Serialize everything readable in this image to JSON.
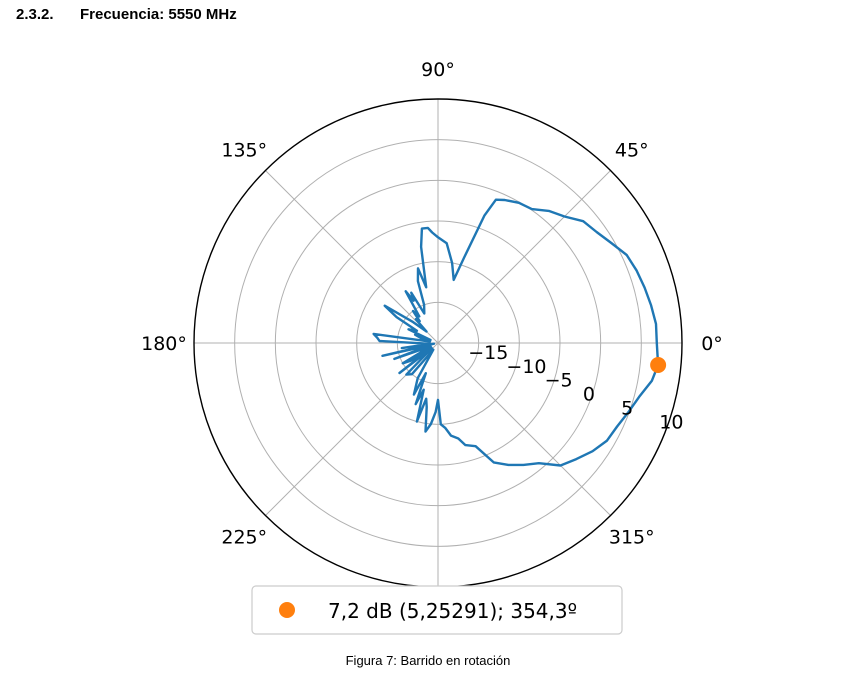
{
  "section": {
    "number": "2.3.2.",
    "title": "Frecuencia: 5550 MHz"
  },
  "caption": "Figura 7: Barrido en rotación",
  "chart_data": {
    "type": "polar-line",
    "title": "",
    "theta_unit": "degrees",
    "r_unit": "dB",
    "rlim": [
      -20,
      10
    ],
    "r_ticks": [
      -15,
      -10,
      -5,
      0,
      5,
      10
    ],
    "r_tick_labels": [
      "−15",
      "−10",
      "−5",
      "0",
      "5",
      "10"
    ],
    "theta_ticks": [
      0,
      45,
      90,
      135,
      180,
      225,
      270,
      315
    ],
    "theta_tick_labels": [
      "0°",
      "45°",
      "90°",
      "135°",
      "180°",
      "225°",
      "",
      "315°"
    ],
    "grid": true,
    "series": [
      {
        "color": "#1f77b4",
        "points": [
          [
            0,
            6.9
          ],
          [
            5,
            6.9
          ],
          [
            10,
            6.6
          ],
          [
            15,
            6.3
          ],
          [
            20,
            6.0
          ],
          [
            25,
            5.6
          ],
          [
            30,
            4.6
          ],
          [
            35,
            3.8
          ],
          [
            40,
            3.3
          ],
          [
            45,
            2.0
          ],
          [
            50,
            1.2
          ],
          [
            55,
            0.1
          ],
          [
            60,
            -0.1
          ],
          [
            65,
            -0.6
          ],
          [
            68,
            -1.0
          ],
          [
            70,
            -3.3
          ],
          [
            73,
            -9.0
          ],
          [
            76,
            -12.0
          ],
          [
            80,
            -10.0
          ],
          [
            85,
            -7.7
          ],
          [
            90,
            -7.0
          ],
          [
            93,
            -6.4
          ],
          [
            95,
            -5.8
          ],
          [
            98,
            -5.8
          ],
          [
            100,
            -8.0
          ],
          [
            102,
            -13.0
          ],
          [
            105,
            -10.5
          ],
          [
            108,
            -12.0
          ],
          [
            110,
            -15.0
          ],
          [
            115,
            -16.0
          ],
          [
            118,
            -13.0
          ],
          [
            120,
            -14.0
          ],
          [
            122,
            -12.5
          ],
          [
            125,
            -16.0
          ],
          [
            128,
            -15.0
          ],
          [
            130,
            -16.5
          ],
          [
            133,
            -16.0
          ],
          [
            135,
            -18.0
          ],
          [
            140,
            -16.0
          ],
          [
            145,
            -12.0
          ],
          [
            148,
            -14.0
          ],
          [
            150,
            -17.0
          ],
          [
            155,
            -16.0
          ],
          [
            158,
            -19.0
          ],
          [
            160,
            -17.0
          ],
          [
            165,
            -18.0
          ],
          [
            170,
            -19.0
          ],
          [
            172,
            -12.0
          ],
          [
            175,
            -12.5
          ],
          [
            178,
            -12.8
          ],
          [
            181,
            -18.0
          ],
          [
            186,
            -19.0
          ],
          [
            188,
            -15.5
          ],
          [
            190,
            -19.5
          ],
          [
            193,
            -13.0
          ],
          [
            196,
            -19.0
          ],
          [
            200,
            -14.3
          ],
          [
            205,
            -19.0
          ],
          [
            210,
            -15.0
          ],
          [
            213,
            -16.0
          ],
          [
            215,
            -19.0
          ],
          [
            218,
            -14.0
          ],
          [
            220,
            -19.0
          ],
          [
            225,
            -14.5
          ],
          [
            230,
            -15.0
          ],
          [
            235,
            -19.0
          ],
          [
            240,
            -15.0
          ],
          [
            245,
            -13.0
          ],
          [
            248,
            -16.0
          ],
          [
            250,
            -12.0
          ],
          [
            253,
            -14.0
          ],
          [
            255,
            -10.0
          ],
          [
            258,
            -13.0
          ],
          [
            260,
            -12.0
          ],
          [
            262,
            -9.0
          ],
          [
            265,
            -10.0
          ],
          [
            268,
            -11.5
          ],
          [
            270,
            -13.0
          ],
          [
            272,
            -10.0
          ],
          [
            275,
            -9.5
          ],
          [
            278,
            -8.5
          ],
          [
            282,
            -8.0
          ],
          [
            285,
            -7.0
          ],
          [
            290,
            -6.5
          ],
          [
            295,
            -3.8
          ],
          [
            300,
            -2.7
          ],
          [
            305,
            -1.7
          ],
          [
            310,
            -0.7
          ],
          [
            315,
            1.3
          ],
          [
            320,
            2.2
          ],
          [
            325,
            3.2
          ],
          [
            330,
            4.0
          ],
          [
            335,
            4.3
          ],
          [
            340,
            4.9
          ],
          [
            345,
            5.6
          ],
          [
            350,
            6.7
          ],
          [
            354.3,
            7.2
          ],
          [
            360,
            6.9
          ]
        ]
      }
    ],
    "marker": {
      "theta": 354.3,
      "r": 7.2,
      "color": "#ff7f0e"
    },
    "legend": {
      "placement": "bottom-center",
      "label": "7,2 dB (5,25291); 354,3º"
    }
  }
}
